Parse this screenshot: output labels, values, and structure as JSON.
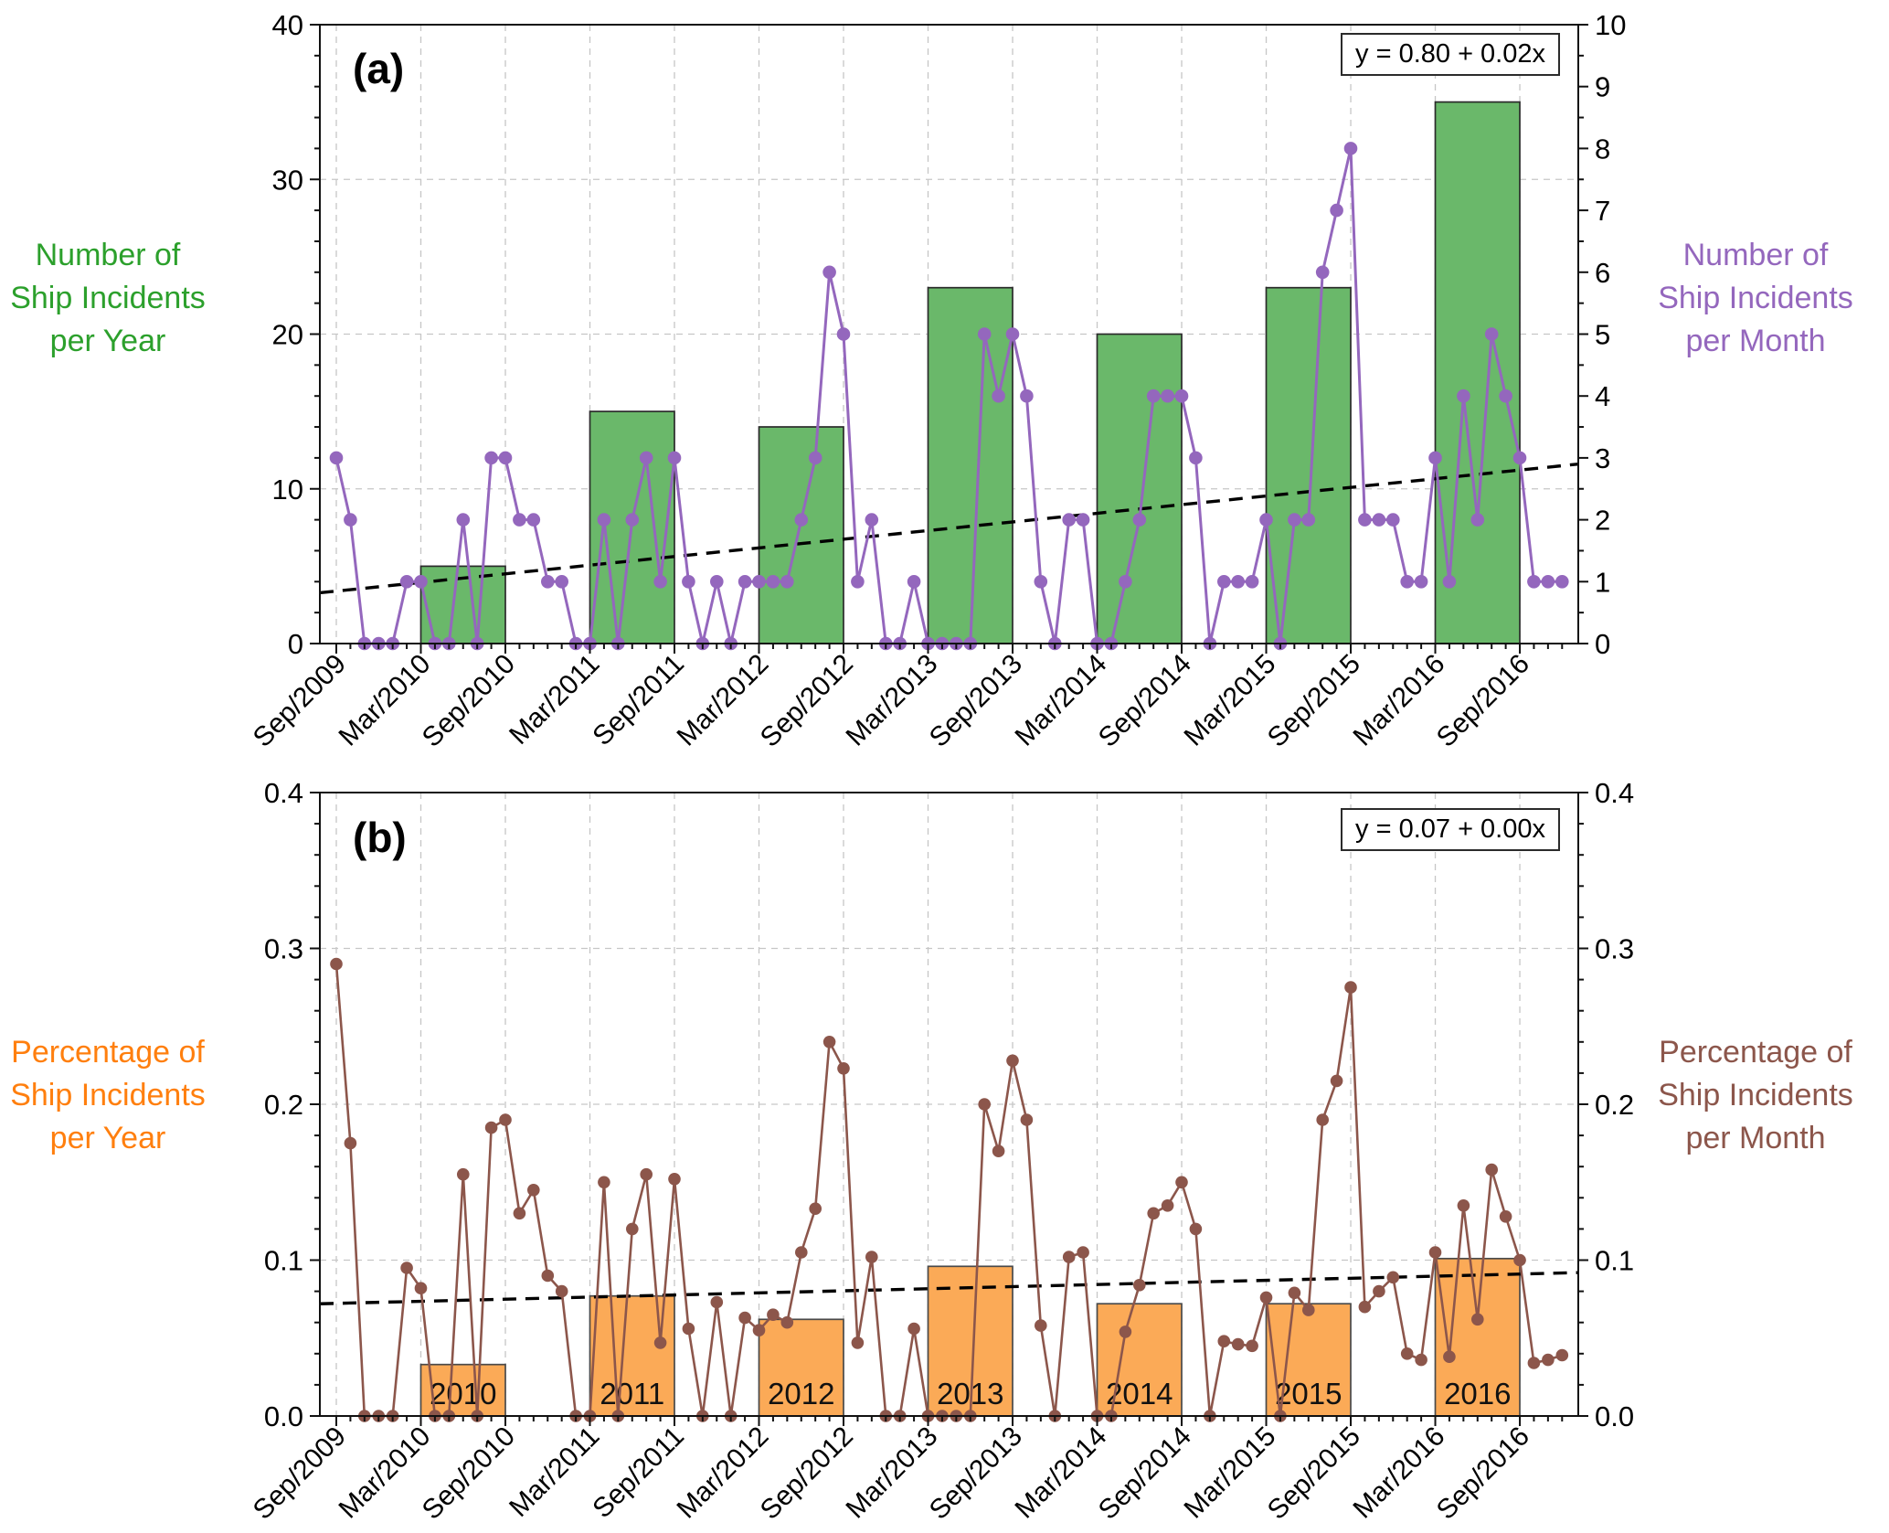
{
  "figure": {
    "background": "#ffffff",
    "description": "Two stacked panels sharing a monthly x axis from Sep/2009 to Dec/2016 with dashed gridlines every 6 months"
  },
  "colors": {
    "bar_year_a": "#6ab86a",
    "bar_edge_a": "#2b2b2b",
    "line_month_a": "#9467bd",
    "axis_title_year_a": "#2ca02c",
    "axis_title_month_a": "#9467bd",
    "bar_year_b": "#fbaa57",
    "bar_edge_b": "#4a4a4a",
    "line_month_b": "#8c564b",
    "axis_title_year_b": "#ff7f0e",
    "axis_title_month_b": "#8c564b",
    "trend": "#000000",
    "grid": "#c6c6c6",
    "spine": "#111111",
    "tick_label": "#000000"
  },
  "chart_data": [
    {
      "panel_label": "(a)",
      "type": "bar+line",
      "equation": "y = 0.80 + 0.02x",
      "ylabel_left_lines": [
        "Number of",
        "Ship Incidents",
        "per Year"
      ],
      "ylabel_right_lines": [
        "Number of",
        "Ship Incidents",
        "per Month"
      ],
      "ylim_left": [
        0,
        40
      ],
      "ylim_right": [
        0,
        10
      ],
      "yticks_left": [
        "0",
        "10",
        "20",
        "30",
        "40"
      ],
      "yticks_right": [
        "0",
        "1",
        "2",
        "3",
        "4",
        "5",
        "6",
        "7",
        "8",
        "9",
        "10"
      ],
      "xtick_labels": [
        "Sep/2009",
        "Mar/2010",
        "Sep/2010",
        "Mar/2011",
        "Sep/2011",
        "Mar/2012",
        "Sep/2012",
        "Mar/2013",
        "Sep/2013",
        "Mar/2014",
        "Sep/2014",
        "Mar/2015",
        "Sep/2015",
        "Mar/2016",
        "Sep/2016"
      ],
      "grid": "dashed",
      "legend": "none",
      "bars": {
        "name": "Number of Ship Incidents per Year",
        "categories": [
          2010,
          2011,
          2012,
          2013,
          2014,
          2015,
          2016
        ],
        "values": [
          5,
          15,
          14,
          23,
          20,
          23,
          35
        ],
        "span": "each bar drawn between Mar and Sep gridlines of its labeled year",
        "labels_inside": false
      },
      "line": {
        "name": "Number of Ship Incidents per Month",
        "axis": "right",
        "x_start": "Sep/2009",
        "x_end": "Dec/2016",
        "x_step_months": 1,
        "values": [
          3,
          2,
          0,
          0,
          0,
          1,
          1,
          0,
          0,
          2,
          0,
          3,
          3,
          2,
          2,
          1,
          1,
          0,
          0,
          2,
          0,
          2,
          3,
          1,
          3,
          1,
          0,
          1,
          0,
          1,
          1,
          1,
          1,
          2,
          3,
          6,
          5,
          1,
          2,
          0,
          0,
          1,
          0,
          0,
          0,
          0,
          5,
          4,
          5,
          4,
          1,
          0,
          2,
          2,
          0,
          0,
          1,
          2,
          4,
          4,
          4,
          3,
          0,
          1,
          1,
          1,
          2,
          0,
          2,
          2,
          6,
          7,
          8,
          2,
          2,
          2,
          1,
          1,
          3,
          1,
          4,
          2,
          5,
          4,
          3,
          1,
          1,
          1
        ]
      },
      "trend_line": {
        "label": "y = 0.80 + 0.02x",
        "style": "dashed black",
        "right_axis_values_at_plot_edges": [
          0.82,
          2.9
        ]
      }
    },
    {
      "panel_label": "(b)",
      "type": "bar+line",
      "equation": "y = 0.07 + 0.00x",
      "ylabel_left_lines": [
        "Percentage of",
        "Ship Incidents",
        "per Year"
      ],
      "ylabel_right_lines": [
        "Percentage of",
        "Ship Incidents",
        "per Month"
      ],
      "ylim_left": [
        0,
        0.4
      ],
      "ylim_right": [
        0,
        0.4
      ],
      "yticks_left": [
        "0.0",
        "0.1",
        "0.2",
        "0.3",
        "0.4"
      ],
      "yticks_right": [
        "0.0",
        "0.1",
        "0.2",
        "0.3",
        "0.4"
      ],
      "xtick_labels": [
        "Sep/2009",
        "Mar/2010",
        "Sep/2010",
        "Mar/2011",
        "Sep/2011",
        "Mar/2012",
        "Sep/2012",
        "Mar/2013",
        "Sep/2013",
        "Mar/2014",
        "Sep/2014",
        "Mar/2015",
        "Sep/2015",
        "Mar/2016",
        "Sep/2016"
      ],
      "grid": "dashed",
      "legend": "none",
      "bars": {
        "name": "Percentage of Ship Incidents per Year",
        "categories": [
          2010,
          2011,
          2012,
          2013,
          2014,
          2015,
          2016
        ],
        "values": [
          0.033,
          0.077,
          0.062,
          0.096,
          0.072,
          0.072,
          0.101
        ],
        "span": "each bar drawn between Mar and Sep gridlines of its labeled year",
        "labels_inside": true,
        "bar_labels": [
          "2010",
          "2011",
          "2012",
          "2013",
          "2014",
          "2015",
          "2016"
        ]
      },
      "line": {
        "name": "Percentage of Ship Incidents per Month",
        "axis": "right",
        "x_start": "Sep/2009",
        "x_end": "Dec/2016",
        "x_step_months": 1,
        "values": [
          0.29,
          0.175,
          0,
          0,
          0,
          0.095,
          0.082,
          0,
          0,
          0.155,
          0,
          0.185,
          0.19,
          0.13,
          0.145,
          0.09,
          0.08,
          0,
          0,
          0.15,
          0,
          0.12,
          0.155,
          0.047,
          0.152,
          0.056,
          0,
          0.073,
          0,
          0.063,
          0.055,
          0.065,
          0.06,
          0.105,
          0.133,
          0.24,
          0.223,
          0.047,
          0.102,
          0,
          0,
          0.056,
          0,
          0,
          0,
          0,
          0.2,
          0.17,
          0.228,
          0.19,
          0.058,
          0,
          0.102,
          0.105,
          0,
          0,
          0.054,
          0.084,
          0.13,
          0.135,
          0.15,
          0.12,
          0,
          0.048,
          0.046,
          0.045,
          0.076,
          0,
          0.079,
          0.068,
          0.19,
          0.215,
          0.275,
          0.07,
          0.08,
          0.089,
          0.04,
          0.036,
          0.105,
          0.038,
          0.135,
          0.062,
          0.158,
          0.128,
          0.1,
          0.034,
          0.036,
          0.039
        ]
      },
      "trend_line": {
        "label": "y = 0.07 + 0.00x",
        "style": "dashed black",
        "right_axis_values_at_plot_edges": [
          0.072,
          0.092
        ]
      }
    }
  ]
}
